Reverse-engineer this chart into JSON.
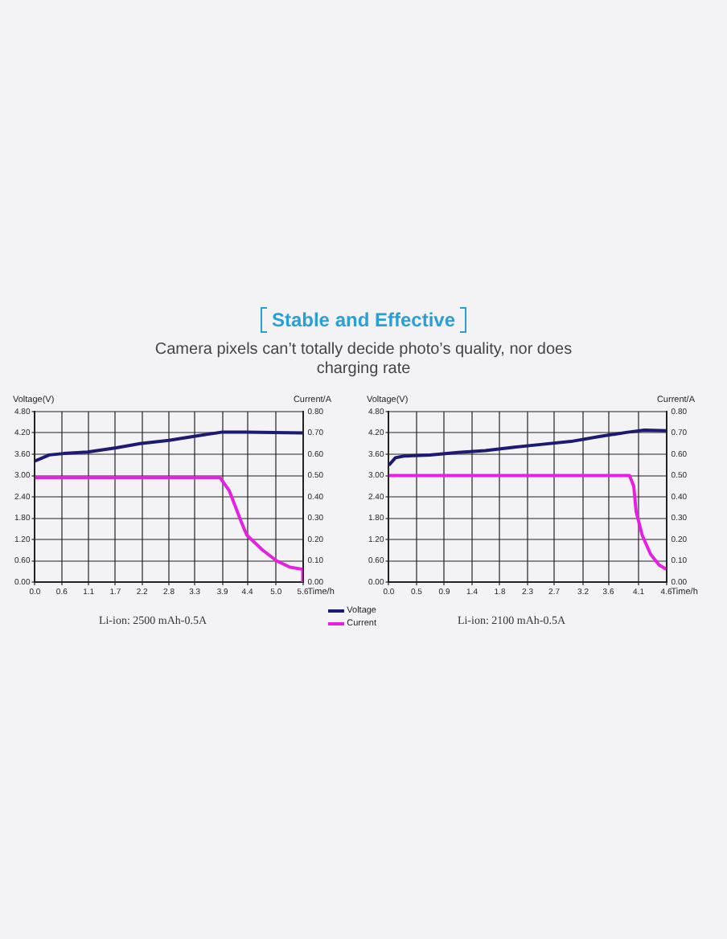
{
  "chart_data": [
    {
      "type": "line",
      "title": "Stable and Effective",
      "subtitle": "Camera pixels can’t totally decide photo’s quality, nor does charging rate",
      "xlabel": "Time/h",
      "ylabel": "Voltage(V)",
      "y2label": "Current/A",
      "annotations": [
        "Li-ion: 2500 mAh-0.5A"
      ],
      "xlim": [
        0,
        5.6
      ],
      "xticks": [
        {
          "value": 0,
          "label": "0.0"
        },
        {
          "value": 0.56,
          "label": "0.6"
        },
        {
          "value": 1.12,
          "label": "1.1"
        },
        {
          "value": 1.68,
          "label": "1.7"
        },
        {
          "value": 2.24,
          "label": "2.2"
        },
        {
          "value": 2.8,
          "label": "2.8"
        },
        {
          "value": 3.34,
          "label": "3.3"
        },
        {
          "value": 3.92,
          "label": "3.9"
        },
        {
          "value": 4.44,
          "label": "4.4"
        },
        {
          "value": 5.04,
          "label": "5.0"
        },
        {
          "value": 5.6,
          "label": "5.6"
        }
      ],
      "ylim": [
        0,
        4.8
      ],
      "yticks": [
        {
          "value": 0,
          "label": "0.00"
        },
        {
          "value": 0.6,
          "label": "0.60"
        },
        {
          "value": 1.2,
          "label": "1.20"
        },
        {
          "value": 1.8,
          "label": "1.80"
        },
        {
          "value": 2.4,
          "label": "2.40"
        },
        {
          "value": 3,
          "label": "3.00"
        },
        {
          "value": 3.6,
          "label": "3.60"
        },
        {
          "value": 4.2,
          "label": "4.20"
        },
        {
          "value": 4.8,
          "label": "4.80"
        }
      ],
      "y2lim": [
        0,
        0.8
      ],
      "y2ticks": [
        {
          "value": 0,
          "label": "0.00"
        },
        {
          "value": 0.1,
          "label": "0.10"
        },
        {
          "value": 0.2,
          "label": "0.20"
        },
        {
          "value": 0.3,
          "label": "0.30"
        },
        {
          "value": 0.4,
          "label": "0.40"
        },
        {
          "value": 0.5,
          "label": "0.50"
        },
        {
          "value": 0.6,
          "label": "0.60"
        },
        {
          "value": 0.7,
          "label": "0.70"
        },
        {
          "value": 0.8,
          "label": "0.80"
        }
      ],
      "grid": true,
      "legend": "bottom right",
      "marker": "none",
      "line_style": "solid",
      "series": [
        {
          "name": "Voltage",
          "color": "#1c1a72",
          "x": [
            0,
            0.3,
            0.6,
            1.1,
            1.7,
            2.2,
            2.8,
            3.3,
            3.9,
            4.4,
            5.0,
            5.6
          ],
          "values": [
            3.41,
            3.58,
            3.62,
            3.66,
            3.78,
            3.9,
            3.99,
            4.1,
            4.22,
            4.22,
            4.21,
            4.2
          ]
        },
        {
          "name": "Current",
          "color": "#e620e0",
          "axis": "y2",
          "x": [
            0,
            3.87,
            4.06,
            4.3,
            4.43,
            4.76,
            5.05,
            5.33,
            5.6,
            5.6
          ],
          "values": [
            0.49,
            0.49,
            0.43,
            0.29,
            0.22,
            0.15,
            0.1,
            0.07,
            0.06,
            0
          ]
        }
      ]
    },
    {
      "type": "line",
      "xlabel": "Time/h",
      "ylabel": "Voltage(V)",
      "y2label": "Current/A",
      "annotations": [
        "Li-ion: 2100 mAh-0.5A"
      ],
      "xlim": [
        0,
        4.6
      ],
      "xticks": [
        {
          "value": 0,
          "label": "0.0"
        },
        {
          "value": 0.46,
          "label": "0.5"
        },
        {
          "value": 0.92,
          "label": "0.9"
        },
        {
          "value": 1.38,
          "label": "1.4"
        },
        {
          "value": 1.84,
          "label": "1.8"
        },
        {
          "value": 2.3,
          "label": "2.3"
        },
        {
          "value": 2.74,
          "label": "2.7"
        },
        {
          "value": 3.22,
          "label": "3.2"
        },
        {
          "value": 3.64,
          "label": "3.6"
        },
        {
          "value": 4.14,
          "label": "4.1"
        },
        {
          "value": 4.6,
          "label": "4.6"
        }
      ],
      "ylim": [
        0,
        4.8
      ],
      "yticks": [
        {
          "value": 0,
          "label": "0.00"
        },
        {
          "value": 0.6,
          "label": "0.60"
        },
        {
          "value": 1.2,
          "label": "1.20"
        },
        {
          "value": 1.8,
          "label": "1.80"
        },
        {
          "value": 2.4,
          "label": "2.40"
        },
        {
          "value": 3,
          "label": "3.00"
        },
        {
          "value": 3.6,
          "label": "3.60"
        },
        {
          "value": 4.2,
          "label": "4.20"
        },
        {
          "value": 4.8,
          "label": "4.80"
        }
      ],
      "y2lim": [
        0,
        0.8
      ],
      "y2ticks": [
        {
          "value": 0,
          "label": "0.00"
        },
        {
          "value": 0.1,
          "label": "0.10"
        },
        {
          "value": 0.2,
          "label": "0.20"
        },
        {
          "value": 0.3,
          "label": "0.30"
        },
        {
          "value": 0.4,
          "label": "0.40"
        },
        {
          "value": 0.5,
          "label": "0.50"
        },
        {
          "value": 0.6,
          "label": "0.60"
        },
        {
          "value": 0.7,
          "label": "0.70"
        },
        {
          "value": 0.8,
          "label": "0.80"
        }
      ],
      "grid": true,
      "marker": "none",
      "line_style": "solid",
      "series": [
        {
          "color": "#1c1a72",
          "x": [
            0,
            0.11,
            0.25,
            0.68,
            1.15,
            1.6,
            2.08,
            2.55,
            3.02,
            3.49,
            3.96,
            4.24,
            4.6
          ],
          "values": [
            3.29,
            3.5,
            3.55,
            3.58,
            3.65,
            3.7,
            3.8,
            3.88,
            3.96,
            4.1,
            4.22,
            4.28,
            4.26
          ]
        },
        {
          "color": "#e620e0",
          "axis": "y2",
          "x": [
            0,
            3.99,
            4.06,
            4.1,
            4.2,
            4.34,
            4.48,
            4.6
          ],
          "values": [
            0.5,
            0.5,
            0.45,
            0.33,
            0.22,
            0.13,
            0.08,
            0.06
          ]
        }
      ]
    }
  ]
}
